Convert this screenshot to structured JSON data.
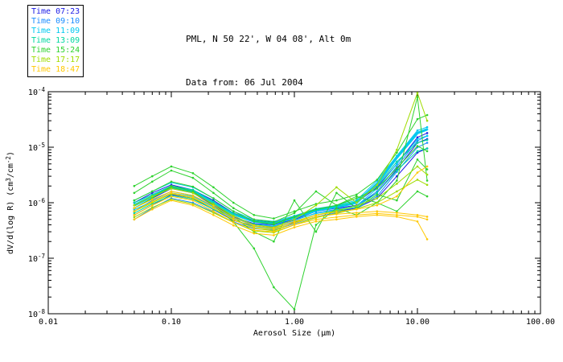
{
  "header": {
    "line1": "PML, N 50 22', W 04 08', Alt 0m",
    "line2": "Data from: 06 Jul 2004"
  },
  "legend": {
    "position": "top-left",
    "entries": [
      {
        "label": "Time 07:23",
        "color": "#1a1ae6"
      },
      {
        "label": "Time 09:10",
        "color": "#1a8cff"
      },
      {
        "label": "Time 11:09",
        "color": "#00c8f0"
      },
      {
        "label": "Time 13:09",
        "color": "#00d7a0"
      },
      {
        "label": "Time 15:24",
        "color": "#2ed22e"
      },
      {
        "label": "Time 17:17",
        "color": "#a0dc00"
      },
      {
        "label": "Time 18:47",
        "color": "#ffc800"
      }
    ]
  },
  "chart_data": {
    "type": "line",
    "title": "PML, N 50 22', W 04 08', Alt 0m",
    "subtitle": "Data from: 06 Jul 2004",
    "xlabel": "Aerosol Size (μm)",
    "ylabel": "dV/d(log R) (cm3/cm-2)",
    "ylabel_parts": [
      {
        "t": "dV/d(log R) (cm"
      },
      {
        "t": "3",
        "sup": true
      },
      {
        "t": "/cm"
      },
      {
        "t": "-2",
        "sup": true
      },
      {
        "t": ")"
      }
    ],
    "xscale": "log",
    "yscale": "log",
    "xlim": [
      0.01,
      100
    ],
    "ylim": [
      1e-08,
      0.0001
    ],
    "grid": false,
    "legend_position": "top-left",
    "xticks": [
      {
        "value": 0.01,
        "label": "0.01"
      },
      {
        "value": 0.1,
        "label": "0.10"
      },
      {
        "value": 1.0,
        "label": "1.00"
      },
      {
        "value": 10.0,
        "label": "10.00"
      },
      {
        "value": 100.0,
        "label": "100.00"
      }
    ],
    "yticks": [
      {
        "value": 0.0001,
        "exp": "-4"
      },
      {
        "value": 1e-05,
        "exp": "-5"
      },
      {
        "value": 1e-06,
        "exp": "-6"
      },
      {
        "value": 1e-07,
        "exp": "-7"
      },
      {
        "value": 1e-08,
        "exp": "-8"
      }
    ],
    "x": [
      0.05,
      0.07,
      0.1,
      0.15,
      0.22,
      0.32,
      0.47,
      0.68,
      1.0,
      1.5,
      2.2,
      3.2,
      4.7,
      6.8,
      10.0,
      12.0
    ],
    "series": [
      {
        "name": "Time 07:23",
        "color": "#1a1ae6",
        "y": [
          8e-07,
          1.2e-06,
          1.8e-06,
          1.5e-06,
          9e-07,
          5.5e-07,
          4.2e-07,
          4e-07,
          5e-07,
          7e-07,
          8e-07,
          9e-07,
          1.5e-06,
          4e-06,
          1.2e-05,
          1.4e-05
        ]
      },
      {
        "name": "Time 07:23",
        "color": "#1a1ae6",
        "y": [
          6e-07,
          9e-07,
          1.4e-06,
          1.2e-06,
          7.5e-07,
          4.8e-07,
          3.8e-07,
          3.5e-07,
          4.5e-07,
          6e-07,
          7e-07,
          8e-07,
          1.2e-06,
          3e-06,
          8e-06,
          9.5e-06
        ]
      },
      {
        "name": "Time 07:23",
        "color": "#1a1ae6",
        "y": [
          1e-06,
          1.5e-06,
          2.1e-06,
          1.7e-06,
          1.1e-06,
          6.5e-07,
          4.8e-07,
          4.4e-07,
          5.6e-07,
          7.6e-07,
          8.8e-07,
          1e-06,
          1.9e-06,
          5e-06,
          1.5e-05,
          1.8e-05
        ]
      },
      {
        "name": "Time 09:10",
        "color": "#1a8cff",
        "y": [
          7e-07,
          1.1e-06,
          1.6e-06,
          1.35e-06,
          8.5e-07,
          5.2e-07,
          4e-07,
          3.7e-07,
          4.8e-07,
          6.5e-07,
          7.6e-07,
          8.8e-07,
          1.6e-06,
          4.5e-06,
          1.3e-05,
          1.6e-05
        ]
      },
      {
        "name": "Time 09:10",
        "color": "#1a8cff",
        "y": [
          5e-07,
          8e-07,
          1.2e-06,
          1e-06,
          6.8e-07,
          4.5e-07,
          3.4e-07,
          3.2e-07,
          4.2e-07,
          5.6e-07,
          6.6e-07,
          7.8e-07,
          1.3e-06,
          3.6e-06,
          1e-05,
          1.2e-05
        ]
      },
      {
        "name": "Time 11:09",
        "color": "#00c8f0",
        "w": 3,
        "y": [
          9e-07,
          1.3e-06,
          1.9e-06,
          1.6e-06,
          1e-06,
          6.2e-07,
          4.6e-07,
          4.2e-07,
          5.4e-07,
          7.2e-07,
          8.4e-07,
          1e-06,
          2.2e-06,
          6.5e-06,
          1.8e-05,
          2.1e-05
        ]
      },
      {
        "name": "Time 11:09",
        "color": "#00c8f0",
        "y": [
          7.5e-07,
          1.05e-06,
          1.5e-06,
          1.3e-06,
          8.4e-07,
          5.4e-07,
          4.1e-07,
          3.8e-07,
          4.9e-07,
          6.4e-07,
          7.4e-07,
          8.8e-07,
          1.8e-06,
          5e-06,
          1.4e-05,
          1.6e-05
        ]
      },
      {
        "name": "Time 11:09",
        "color": "#00c8f0",
        "y": [
          1.1e-06,
          1.6e-06,
          2.3e-06,
          1.9e-06,
          1.2e-06,
          7e-07,
          5e-07,
          4.6e-07,
          5.8e-07,
          7.8e-07,
          9e-07,
          1.1e-06,
          2.5e-06,
          7e-06,
          2e-05,
          2.3e-05
        ]
      },
      {
        "name": "Time 13:09",
        "color": "#00d7a0",
        "y": [
          1e-06,
          1.4e-06,
          2e-06,
          1.7e-06,
          1.05e-06,
          6.4e-07,
          4.7e-07,
          4.3e-07,
          5.5e-07,
          7.4e-07,
          8.6e-07,
          1.05e-06,
          2e-06,
          5.5e-06,
          1.2e-05,
          1.35e-05
        ]
      },
      {
        "name": "Time 13:09",
        "color": "#00d7a0",
        "y": [
          6.5e-07,
          9.5e-07,
          1.35e-06,
          1.15e-06,
          7.6e-07,
          4.9e-07,
          3.7e-07,
          3.4e-07,
          4.6e-07,
          6e-07,
          7e-07,
          8.4e-07,
          1.5e-06,
          3.8e-06,
          8.5e-06,
          9.5e-06
        ]
      },
      {
        "name": "Time 15:24",
        "color": "#2ed22e",
        "y": [
          1.5e-06,
          2.4e-06,
          3.8e-06,
          2.8e-06,
          1.5e-06,
          8e-07,
          5e-07,
          4.5e-07,
          6.5e-07,
          1.6e-06,
          9e-07,
          1.3e-06,
          1e-06,
          2.5e-06,
          8e-05,
          2.5e-06
        ]
      },
      {
        "name": "Time 15:24",
        "color": "#2ed22e",
        "y": [
          8e-07,
          1.2e-06,
          2e-06,
          1.6e-06,
          9e-07,
          4.5e-07,
          1.5e-07,
          3e-08,
          1.2e-08,
          4e-07,
          8e-07,
          6e-07,
          1e-06,
          7e-07,
          1.6e-06,
          1.3e-06
        ]
      },
      {
        "name": "Time 15:24",
        "color": "#2ed22e",
        "y": [
          2e-06,
          3e-06,
          4.5e-06,
          3.4e-06,
          1.9e-06,
          1e-06,
          6e-07,
          5.2e-07,
          7e-07,
          9.5e-07,
          1.1e-06,
          1.4e-06,
          2.6e-06,
          8e-06,
          3.2e-05,
          3.8e-05
        ]
      },
      {
        "name": "Time 15:24",
        "color": "#2ed22e",
        "y": [
          1.1e-06,
          1.6e-06,
          2.4e-06,
          1.95e-06,
          1.2e-06,
          7e-07,
          4.6e-07,
          4.1e-07,
          5.6e-07,
          7.6e-07,
          9e-07,
          1.2e-06,
          1.8e-06,
          4.2e-06,
          1.05e-05,
          8.5e-06
        ]
      },
      {
        "name": "Time 15:24",
        "color": "#2ed22e",
        "y": [
          9e-07,
          1.3e-06,
          1.9e-06,
          1.5e-06,
          9.5e-07,
          5.5e-07,
          3e-07,
          2e-07,
          1.1e-06,
          3e-07,
          1.5e-06,
          8e-07,
          1.4e-06,
          1.1e-06,
          6e-06,
          4e-06
        ]
      },
      {
        "name": "Time 17:17",
        "color": "#a0dc00",
        "y": [
          9e-07,
          1.3e-06,
          1.8e-06,
          1.5e-06,
          9.5e-07,
          5.8e-07,
          4e-07,
          3.6e-07,
          5e-07,
          9e-07,
          1.9e-06,
          1e-06,
          2.1e-06,
          9e-06,
          9.5e-05,
          3e-05
        ]
      },
      {
        "name": "Time 17:17",
        "color": "#a0dc00",
        "y": [
          7e-07,
          1e-06,
          1.45e-06,
          1.2e-06,
          8e-07,
          5e-07,
          3.5e-07,
          3.1e-07,
          4.4e-07,
          6e-07,
          7.2e-07,
          8.8e-07,
          1.2e-06,
          2.2e-06,
          4.5e-06,
          3.2e-06
        ]
      },
      {
        "name": "Time 17:17",
        "color": "#a0dc00",
        "y": [
          5.5e-07,
          8.2e-07,
          1.15e-06,
          9.5e-07,
          6.6e-07,
          4.4e-07,
          3.1e-07,
          2.9e-07,
          4e-07,
          5.4e-07,
          6.4e-07,
          7.8e-07,
          1e-06,
          1.6e-06,
          2.6e-06,
          2.1e-06
        ]
      },
      {
        "name": "Time 18:47",
        "color": "#ffc800",
        "y": [
          6e-07,
          9e-07,
          1.3e-06,
          1.1e-06,
          7e-07,
          4.4e-07,
          3.2e-07,
          3e-07,
          4e-07,
          5e-07,
          5.5e-07,
          6e-07,
          6.4e-07,
          6e-07,
          5.6e-07,
          5e-07
        ]
      },
      {
        "name": "Time 18:47",
        "color": "#ffc800",
        "y": [
          5e-07,
          7.6e-07,
          1.1e-06,
          9e-07,
          6e-07,
          3.9e-07,
          2.8e-07,
          2.6e-07,
          3.6e-07,
          4.6e-07,
          5e-07,
          5.6e-07,
          6e-07,
          5.6e-07,
          4.6e-07,
          2.2e-07
        ]
      },
      {
        "name": "Time 18:47",
        "color": "#ffc800",
        "y": [
          7e-07,
          1.05e-06,
          1.5e-06,
          1.25e-06,
          8e-07,
          4.9e-07,
          3.5e-07,
          3.3e-07,
          4.3e-07,
          5.6e-07,
          6.2e-07,
          6.6e-07,
          7e-07,
          6.6e-07,
          6e-07,
          5.6e-07
        ]
      },
      {
        "name": "Time 18:47",
        "color": "#ffc800",
        "y": [
          8e-07,
          1.15e-06,
          1.6e-06,
          1.35e-06,
          8.8e-07,
          5.4e-07,
          3.8e-07,
          3.5e-07,
          4.6e-07,
          6e-07,
          6.8e-07,
          7.6e-07,
          9e-07,
          1.3e-06,
          3.5e-06,
          4.5e-06
        ]
      }
    ]
  }
}
